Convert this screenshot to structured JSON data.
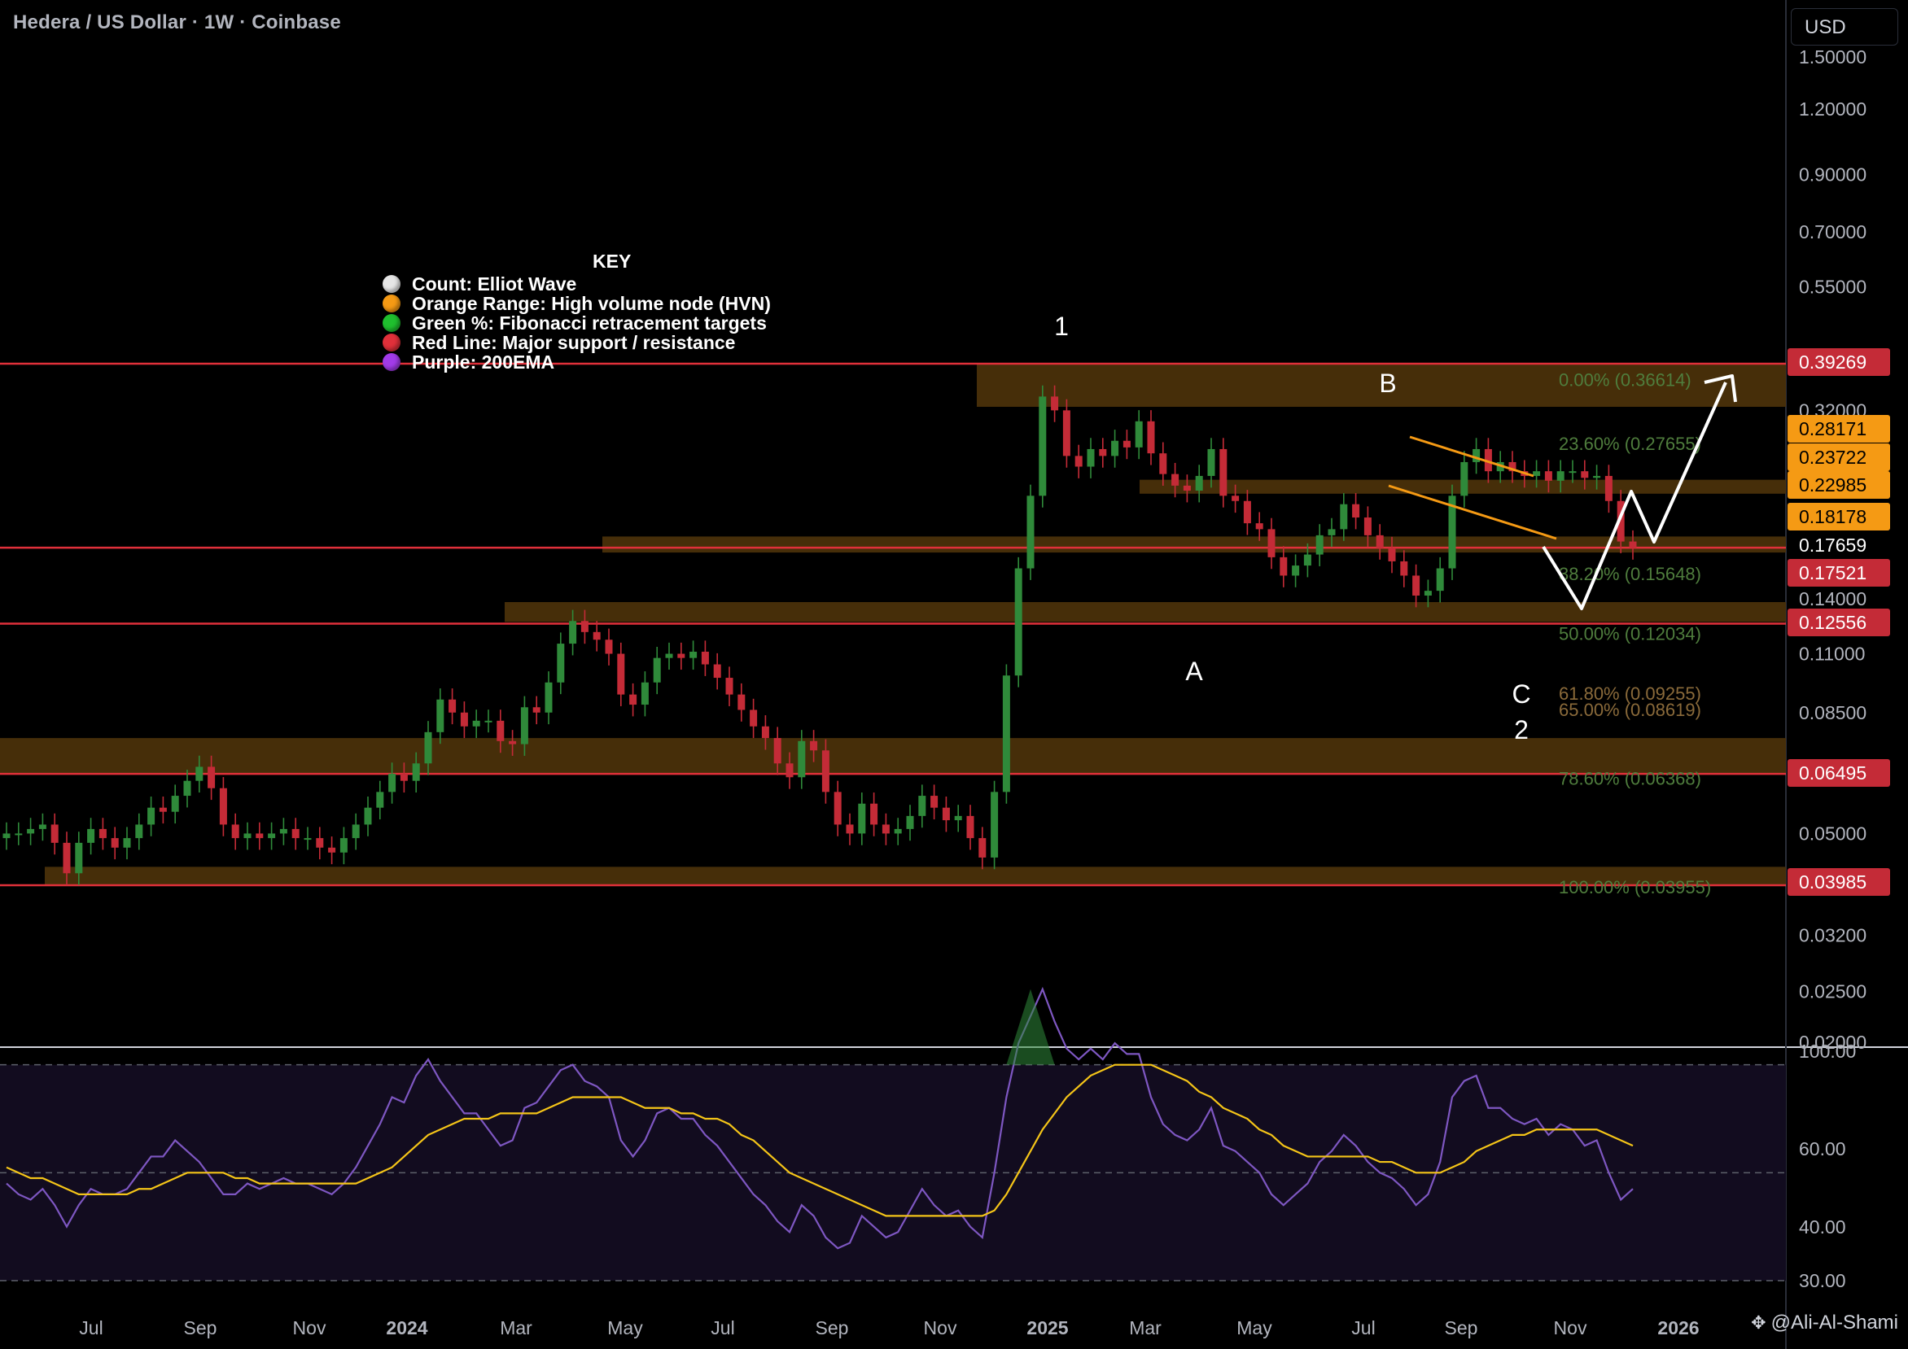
{
  "header": {
    "title": "Hedera / US Dollar · 1W · Coinbase",
    "currency": "USD"
  },
  "key": {
    "title": "KEY",
    "items": [
      {
        "text": "Count: Elliot Wave",
        "color": "#e6e6e6"
      },
      {
        "text": "Orange Range: High volume node (HVN)",
        "color": "#f59a14"
      },
      {
        "text": "Green %: Fibonacci retracement targets",
        "color": "#1fbf2e"
      },
      {
        "text": "Red Line: Major support / resistance",
        "color": "#e0303a"
      },
      {
        "text": "Purple: 200EMA",
        "color": "#a13be8"
      }
    ]
  },
  "chart_data": {
    "type": "candlestick",
    "price_axis_labels": [
      "1.50000",
      "1.20000",
      "0.90000",
      "0.70000",
      "0.55000",
      "0.32000",
      "0.14000",
      "0.11000",
      "0.08500",
      "0.05000",
      "0.03200",
      "0.02500",
      "0.02000"
    ],
    "price_axis_scale": "log",
    "time_axis_labels": [
      "Jul",
      "Sep",
      "Nov",
      "2024",
      "Mar",
      "May",
      "Jul",
      "Sep",
      "Nov",
      "2025",
      "Mar",
      "May",
      "Jul",
      "Sep",
      "Nov",
      "2026"
    ],
    "price_badges": [
      {
        "value": "0.39269",
        "kind": "red"
      },
      {
        "value": "0.28171",
        "kind": "orange"
      },
      {
        "value": "0.23722",
        "kind": "orange"
      },
      {
        "value": "0.22985",
        "kind": "orange"
      },
      {
        "value": "0.18178",
        "kind": "orange"
      },
      {
        "value": "0.17659",
        "kind": "current"
      },
      {
        "value": "0.17521",
        "kind": "red"
      },
      {
        "value": "0.12556",
        "kind": "red"
      },
      {
        "value": "0.06495",
        "kind": "red"
      },
      {
        "value": "0.03985",
        "kind": "red"
      }
    ],
    "support_resistance_lines": [
      0.39269,
      0.17521,
      0.12556,
      0.06495,
      0.03985
    ],
    "hvn_zones": [
      {
        "from": 0.325,
        "to": 0.392
      },
      {
        "from": 0.222,
        "to": 0.236
      },
      {
        "from": 0.1715,
        "to": 0.184
      },
      {
        "from": 0.1265,
        "to": 0.138
      },
      {
        "from": 0.065,
        "to": 0.076
      },
      {
        "from": 0.0398,
        "to": 0.0432
      }
    ],
    "fib_levels": [
      {
        "label": "0.00% (0.36614)",
        "price": 0.36614
      },
      {
        "label": "23.60% (0.27655)",
        "price": 0.27655
      },
      {
        "label": "38.20% (0.15648)",
        "price": 0.15648
      },
      {
        "label": "50.00% (0.12034)",
        "price": 0.12034
      },
      {
        "label": "61.80% (0.09255)",
        "price": 0.09255
      },
      {
        "label": "65.00% (0.08619)",
        "price": 0.08619
      },
      {
        "label": "78.60% (0.06368)",
        "price": 0.06368
      },
      {
        "label": "100.00% (0.03955)",
        "price": 0.03955
      }
    ],
    "wave_labels": [
      "1",
      "B",
      "A",
      "C",
      "2"
    ],
    "candles_close": [
      0.05,
      0.05,
      0.051,
      0.052,
      0.048,
      0.042,
      0.048,
      0.051,
      0.049,
      0.047,
      0.049,
      0.052,
      0.056,
      0.055,
      0.059,
      0.063,
      0.067,
      0.061,
      0.052,
      0.049,
      0.05,
      0.049,
      0.05,
      0.051,
      0.049,
      0.049,
      0.047,
      0.046,
      0.049,
      0.052,
      0.056,
      0.06,
      0.065,
      0.063,
      0.068,
      0.078,
      0.09,
      0.085,
      0.08,
      0.082,
      0.082,
      0.075,
      0.074,
      0.087,
      0.085,
      0.097,
      0.115,
      0.127,
      0.121,
      0.117,
      0.11,
      0.092,
      0.088,
      0.097,
      0.108,
      0.11,
      0.108,
      0.111,
      0.105,
      0.099,
      0.092,
      0.086,
      0.08,
      0.076,
      0.068,
      0.064,
      0.075,
      0.072,
      0.06,
      0.052,
      0.05,
      0.057,
      0.052,
      0.05,
      0.051,
      0.054,
      0.059,
      0.056,
      0.053,
      0.054,
      0.049,
      0.045,
      0.06,
      0.1,
      0.16,
      0.22,
      0.34,
      0.32,
      0.262,
      0.25,
      0.27,
      0.262,
      0.28,
      0.272,
      0.305,
      0.265,
      0.242,
      0.23,
      0.225,
      0.24,
      0.27,
      0.22,
      0.215,
      0.195,
      0.19,
      0.168,
      0.155,
      0.162,
      0.17,
      0.185,
      0.19,
      0.212,
      0.2,
      0.185,
      0.175,
      0.165,
      0.155,
      0.142,
      0.145,
      0.16,
      0.22,
      0.255,
      0.27,
      0.245,
      0.255,
      0.245,
      0.24,
      0.245,
      0.235,
      0.245,
      0.245,
      0.238,
      0.24,
      0.215,
      0.18,
      0.175
    ],
    "rsi_scale_labels": [
      "100.00",
      "60.00",
      "40.00",
      "30.00"
    ],
    "rsi_values": [
      48,
      46,
      45,
      47,
      44,
      40,
      44,
      47,
      46,
      46,
      47,
      50,
      53,
      53,
      56,
      54,
      52,
      49,
      46,
      46,
      48,
      47,
      48,
      49,
      48,
      48,
      47,
      46,
      48,
      51,
      55,
      59,
      64,
      63,
      68,
      71,
      67,
      64,
      61,
      61,
      58,
      55,
      56,
      62,
      63,
      66,
      69,
      70,
      67,
      66,
      64,
      56,
      53,
      56,
      61,
      62,
      60,
      60,
      57,
      55,
      52,
      49,
      46,
      44,
      41,
      39,
      44,
      42,
      38,
      36,
      37,
      42,
      40,
      38,
      39,
      43,
      47,
      44,
      42,
      43,
      40,
      38,
      50,
      64,
      74,
      79,
      84,
      78,
      73,
      71,
      73,
      71,
      74,
      72,
      72,
      64,
      59,
      57,
      56,
      58,
      62,
      55,
      54,
      52,
      50,
      46,
      44,
      46,
      48,
      52,
      54,
      57,
      55,
      52,
      50,
      49,
      47,
      44,
      46,
      52,
      64,
      67,
      68,
      62,
      62,
      60,
      59,
      60,
      57,
      59,
      58,
      55,
      56,
      50,
      45,
      47
    ],
    "rsi_ma_values": [
      51,
      50,
      49,
      49,
      48,
      47,
      46,
      46,
      46,
      46,
      46,
      47,
      47,
      48,
      49,
      50,
      50,
      50,
      50,
      49,
      49,
      48,
      48,
      48,
      48,
      48,
      48,
      48,
      48,
      48,
      49,
      50,
      51,
      53,
      55,
      57,
      58,
      59,
      60,
      60,
      60,
      61,
      61,
      61,
      61,
      62,
      63,
      64,
      64,
      64,
      64,
      64,
      63,
      62,
      62,
      62,
      61,
      61,
      60,
      60,
      59,
      57,
      56,
      54,
      52,
      50,
      49,
      48,
      47,
      46,
      45,
      44,
      43,
      42,
      42,
      42,
      42,
      42,
      42,
      42,
      42,
      42,
      43,
      46,
      50,
      54,
      58,
      61,
      64,
      66,
      68,
      69,
      70,
      70,
      70,
      70,
      69,
      68,
      67,
      65,
      64,
      62,
      61,
      60,
      58,
      57,
      55,
      54,
      53,
      53,
      53,
      53,
      53,
      53,
      52,
      52,
      51,
      50,
      50,
      50,
      51,
      52,
      54,
      55,
      56,
      57,
      57,
      58,
      58,
      58,
      58,
      58,
      58,
      57,
      56,
      55
    ]
  },
  "watermark": "@Ali-Al-Shami"
}
